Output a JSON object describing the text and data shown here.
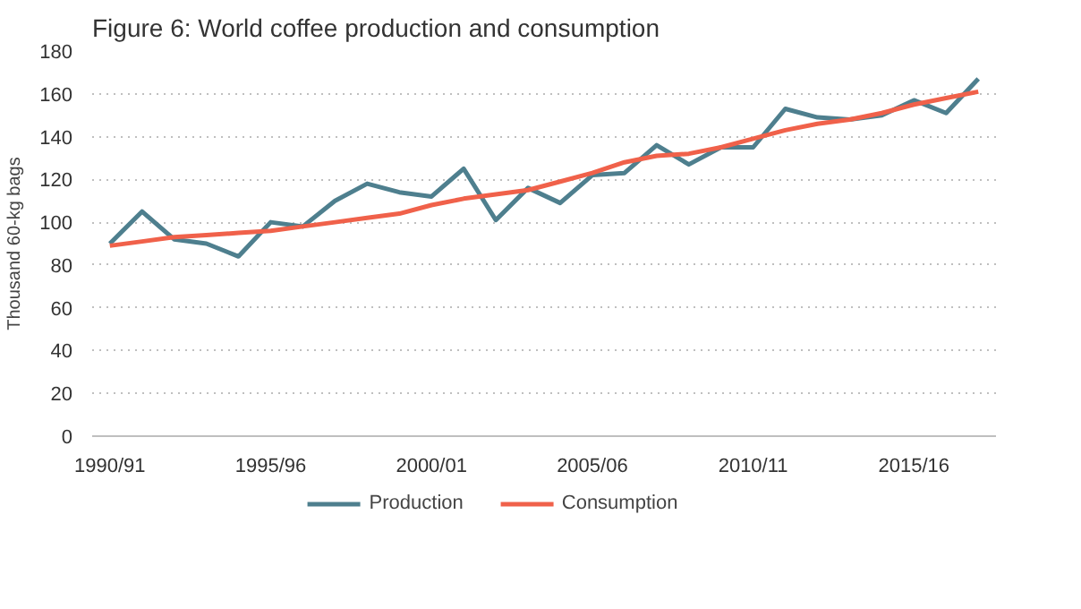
{
  "chart_data": {
    "type": "line",
    "title": "Figure 6: World coffee production  and consumption",
    "ylabel": "Thousand 60-kg bags",
    "categories": [
      "1990/91",
      null,
      null,
      null,
      null,
      "1995/96",
      null,
      null,
      null,
      null,
      "2000/01",
      null,
      null,
      null,
      null,
      "2005/06",
      null,
      null,
      null,
      null,
      "2010/11",
      null,
      null,
      null,
      null,
      "2015/16",
      null,
      null
    ],
    "series": [
      {
        "name": "Production",
        "color": "#4e7f8e",
        "values": [
          90,
          105,
          92,
          90,
          84,
          100,
          98,
          110,
          118,
          114,
          112,
          125,
          101,
          116,
          109,
          122,
          123,
          136,
          127,
          135,
          135,
          153,
          149,
          148,
          150,
          157,
          151,
          167
        ]
      },
      {
        "name": "Consumption",
        "color": "#f0614a",
        "values": [
          89,
          91,
          93,
          94,
          95,
          96,
          98,
          100,
          102,
          104,
          108,
          111,
          113,
          115,
          119,
          123,
          128,
          131,
          132,
          135,
          139,
          143,
          146,
          148,
          151,
          155,
          158,
          161
        ]
      }
    ],
    "ylim": [
      0,
      180
    ],
    "yticks": [
      0,
      20,
      40,
      60,
      80,
      100,
      120,
      140,
      160,
      180
    ],
    "grid": "y",
    "legend": "bottom"
  }
}
